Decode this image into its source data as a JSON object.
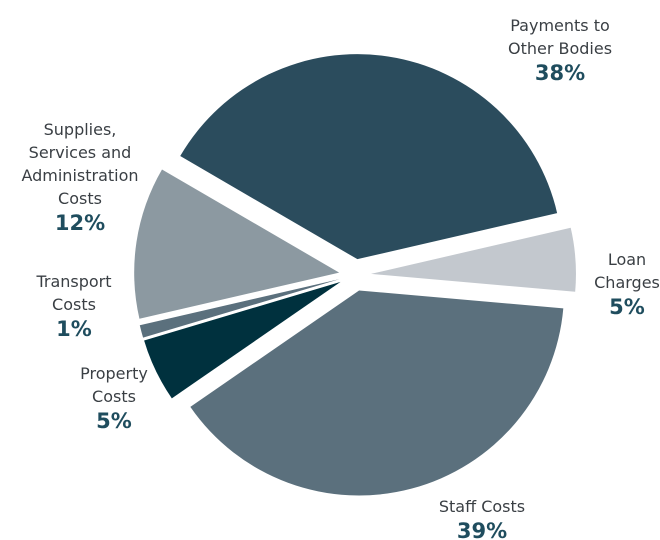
{
  "chart_data": {
    "type": "pie",
    "categories": [
      "Payments to Other Bodies",
      "Loan Charges",
      "Staff Costs",
      "Property Costs",
      "Transport Costs",
      "Supplies, Services and Administration Costs"
    ],
    "values": [
      38,
      5,
      39,
      5,
      1,
      12
    ],
    "value_labels": [
      "38%",
      "5%",
      "39%",
      "5%",
      "1%",
      "12%"
    ],
    "colors": [
      "#2b4c5d",
      "#c3c8ce",
      "#5b707d",
      "#00313e",
      "#5b707d",
      "#8c99a1"
    ]
  }
}
